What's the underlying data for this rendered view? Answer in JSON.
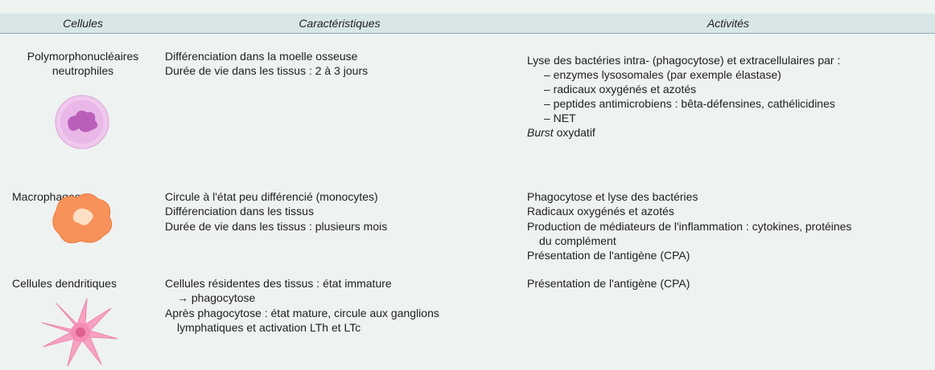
{
  "table": {
    "header": [
      "Cellules",
      "Caractéristiques",
      "Activités"
    ],
    "rows": [
      {
        "cell": [
          "Polymorphonucléaires",
          "neutrophiles"
        ],
        "characteristics": [
          "Différenciation dans la moelle osseuse",
          "Durée de vie dans les tissus : 2 à 3 jours"
        ],
        "activities": [
          "Lyse des bactéries intra- (phagocytose) et extracellulaires par :",
          "– enzymes lysosomales (par exemple élastase)",
          "– radicaux oxygénés et azotés",
          "– peptides antimicrobiens : bêta-défensines, cathélicidines",
          "– NET",
          {
            "em": "Burst",
            "text": " oxydatif"
          }
        ]
      },
      {
        "cell": [
          "Macrophages"
        ],
        "characteristics": [
          "Circule à l'état peu différencié (monocytes)",
          "Différenciation dans les tissus",
          "Durée de vie dans les tissus : plusieurs mois"
        ],
        "activities": [
          "Phagocytose et lyse des bactéries",
          "Radicaux oxygénés et azotés",
          "Production de médiateurs de l'inflammation : cytokines, protéines",
          "du complément",
          "Présentation de l'antigène (CPA)"
        ]
      },
      {
        "cell": [
          "Cellules dendritiques"
        ],
        "characteristics": [
          "Cellules résidentes des tissus : état immature",
          "→ phagocytose",
          "Après phagocytose : état mature, circule aux ganglions",
          "lymphatiques et activation LTh et LTc"
        ],
        "activities": [
          "Présentation de l'antigène (CPA)"
        ]
      }
    ]
  }
}
